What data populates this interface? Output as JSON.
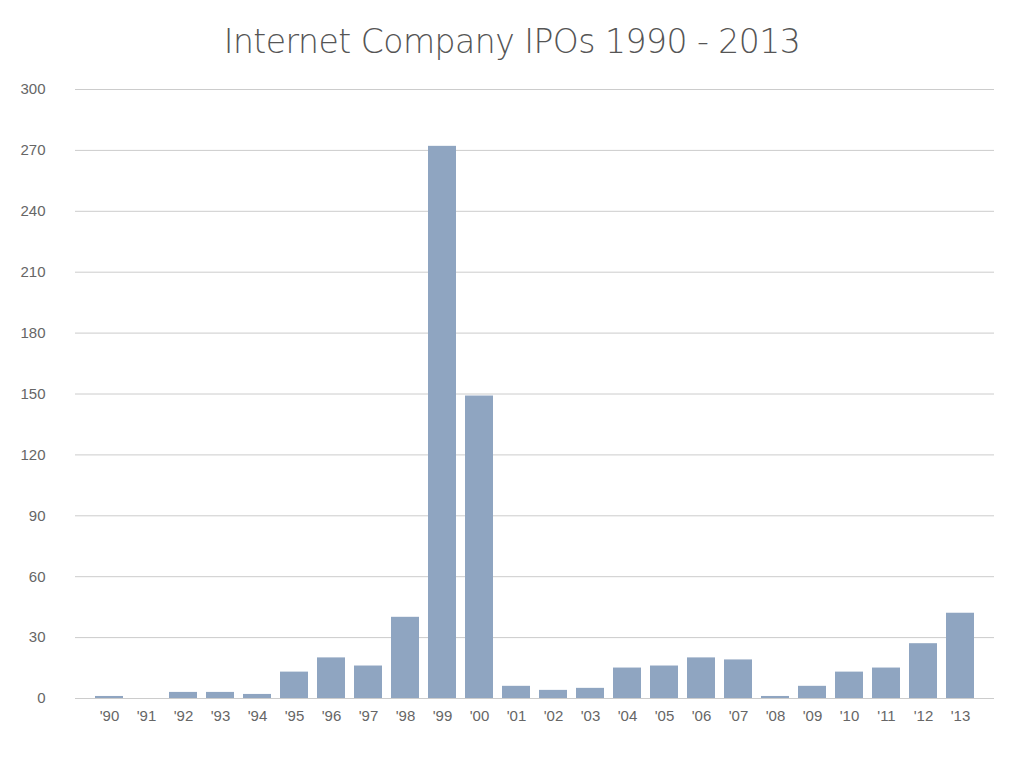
{
  "chart_data": {
    "type": "bar",
    "title": "Internet Company IPOs 1990 - 2013",
    "categories": [
      "'90",
      "'91",
      "'92",
      "'93",
      "'94",
      "'95",
      "'96",
      "'97",
      "'98",
      "'99",
      "'00",
      "'01",
      "'02",
      "'03",
      "'04",
      "'05",
      "'06",
      "'07",
      "'08",
      "'09",
      "'10",
      "'11",
      "'12",
      "'13"
    ],
    "values": [
      1,
      0,
      3,
      3,
      2,
      13,
      20,
      16,
      40,
      272,
      149,
      6,
      4,
      5,
      15,
      16,
      20,
      19,
      1,
      6,
      13,
      15,
      27,
      42
    ],
    "color": "#8fa5c1",
    "ylim": [
      0,
      300
    ],
    "yticks": [
      0,
      30,
      60,
      90,
      120,
      150,
      180,
      210,
      240,
      270,
      300
    ],
    "grid": true
  }
}
